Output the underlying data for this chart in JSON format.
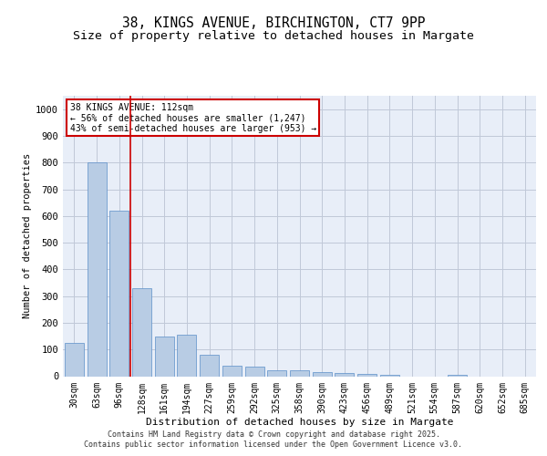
{
  "title1": "38, KINGS AVENUE, BIRCHINGTON, CT7 9PP",
  "title2": "Size of property relative to detached houses in Margate",
  "xlabel": "Distribution of detached houses by size in Margate",
  "ylabel": "Number of detached properties",
  "footer1": "Contains HM Land Registry data © Crown copyright and database right 2025.",
  "footer2": "Contains public sector information licensed under the Open Government Licence v3.0.",
  "annotation_title": "38 KINGS AVENUE: 112sqm",
  "annotation_line1": "← 56% of detached houses are smaller (1,247)",
  "annotation_line2": "43% of semi-detached houses are larger (953) →",
  "categories": [
    "30sqm",
    "63sqm",
    "96sqm",
    "128sqm",
    "161sqm",
    "194sqm",
    "227sqm",
    "259sqm",
    "292sqm",
    "325sqm",
    "358sqm",
    "390sqm",
    "423sqm",
    "456sqm",
    "489sqm",
    "521sqm",
    "554sqm",
    "587sqm",
    "620sqm",
    "652sqm",
    "685sqm"
  ],
  "values": [
    125,
    800,
    620,
    330,
    150,
    155,
    80,
    38,
    35,
    22,
    22,
    15,
    12,
    10,
    5,
    0,
    0,
    5,
    0,
    0,
    0
  ],
  "bar_color": "#b8cce4",
  "bar_edge_color": "#5b8fc9",
  "vline_color": "#cc0000",
  "vline_position": 2.5,
  "annotation_box_color": "#cc0000",
  "ylim": [
    0,
    1050
  ],
  "yticks": [
    0,
    100,
    200,
    300,
    400,
    500,
    600,
    700,
    800,
    900,
    1000
  ],
  "grid_color": "#c0c8d8",
  "background_color": "#e8eef8",
  "fig_background": "#ffffff"
}
